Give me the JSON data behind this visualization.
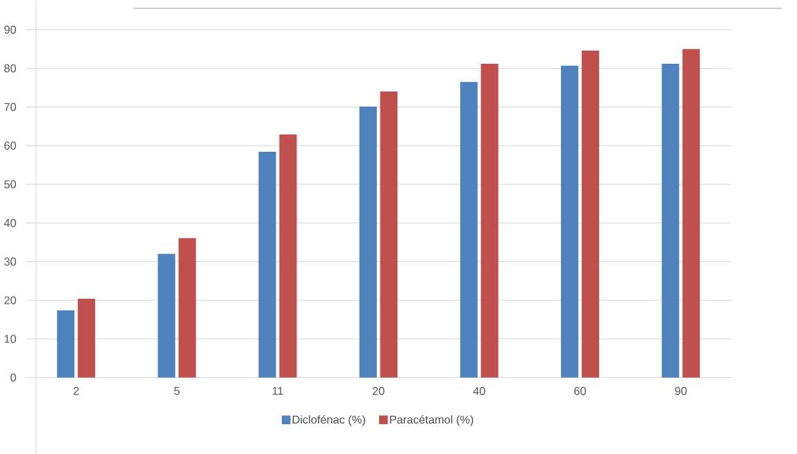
{
  "chart_data": {
    "type": "bar",
    "categories": [
      "2",
      "5",
      "11",
      "20",
      "40",
      "60",
      "90"
    ],
    "series": [
      {
        "name": "Diclofénac (%)",
        "color": "#4f81bd",
        "values": [
          17.4,
          32.0,
          58.4,
          70.1,
          76.5,
          80.7,
          81.2
        ]
      },
      {
        "name": "Paracétamol (%)",
        "color": "#c0504d",
        "values": [
          20.4,
          36.1,
          62.9,
          74.0,
          81.2,
          84.6,
          85.0
        ]
      }
    ],
    "ylim": [
      0,
      90
    ],
    "yticks": [
      0,
      10,
      20,
      30,
      40,
      50,
      60,
      70,
      80,
      90
    ],
    "grid": "y",
    "legend": "bottom"
  }
}
